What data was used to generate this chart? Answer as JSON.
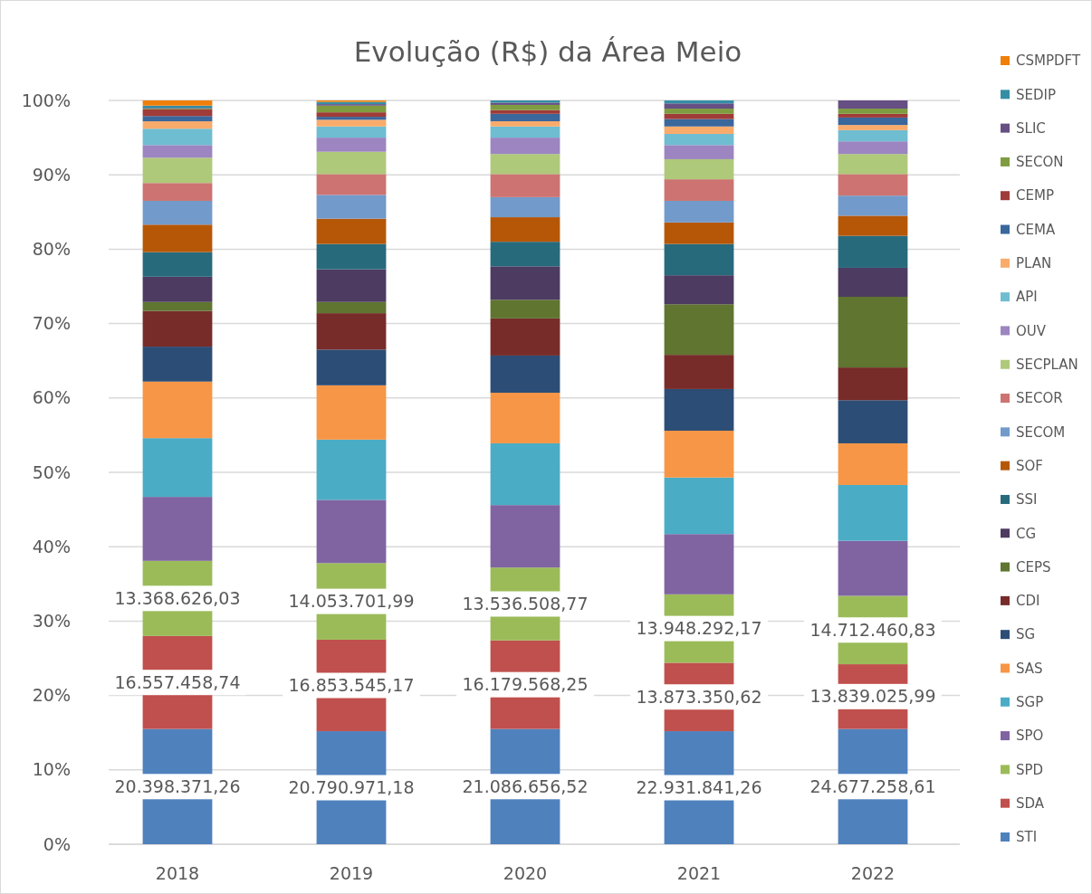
{
  "chart_data": {
    "type": "bar",
    "stacked": true,
    "title": "Evolução (R$) da Área Meio",
    "categories": [
      "2018",
      "2019",
      "2020",
      "2021",
      "2022"
    ],
    "ylim": [
      0,
      100
    ],
    "yticks": [
      {
        "value": 0,
        "label": "0%"
      },
      {
        "value": 10,
        "label": "10%"
      },
      {
        "value": 20,
        "label": "20%"
      },
      {
        "value": 30,
        "label": "30%"
      },
      {
        "value": 40,
        "label": "40%"
      },
      {
        "value": 50,
        "label": "50%"
      },
      {
        "value": 60,
        "label": "60%"
      },
      {
        "value": 70,
        "label": "70%"
      },
      {
        "value": 80,
        "label": "80%"
      },
      {
        "value": 90,
        "label": "90%"
      },
      {
        "value": 100,
        "label": "100%"
      }
    ],
    "grid": "y",
    "legend": "right",
    "annotations": [
      "20.398.371,26",
      "20.790.971,18",
      "21.086.656,52",
      "22.931.841,26",
      "24.677.258,61",
      "16.557.458,74",
      "16.853.545,17",
      "16.179.568,25",
      "13.873.350,62",
      "13.839.025,99",
      "13.368.626,03",
      "14.053.701,99",
      "13.536.508,77",
      "13.948.292,17",
      "14.712.460,83"
    ],
    "series": [
      {
        "name": "STI",
        "color": "#4f81bd",
        "values": [
          15.5,
          15.2,
          15.5,
          15.2,
          15.5
        ]
      },
      {
        "name": "SDA",
        "color": "#c0504d",
        "values": [
          12.5,
          12.3,
          11.9,
          9.2,
          8.7
        ]
      },
      {
        "name": "SPD",
        "color": "#9bbb59",
        "values": [
          10.1,
          10.3,
          9.8,
          9.2,
          9.2
        ]
      },
      {
        "name": "SPO",
        "color": "#8064a2",
        "values": [
          8.6,
          8.5,
          8.4,
          8.1,
          7.4
        ]
      },
      {
        "name": "SGP",
        "color": "#4bacc6",
        "values": [
          7.9,
          8.1,
          8.3,
          7.6,
          7.5
        ]
      },
      {
        "name": "SAS",
        "color": "#f79646",
        "values": [
          7.6,
          7.3,
          6.8,
          6.3,
          5.6
        ]
      },
      {
        "name": "SG",
        "color": "#2c4d75",
        "values": [
          4.7,
          4.8,
          5.0,
          5.6,
          5.8
        ]
      },
      {
        "name": "CDI",
        "color": "#772c2a",
        "values": [
          4.8,
          4.9,
          5.0,
          4.6,
          4.4
        ]
      },
      {
        "name": "CEPS",
        "color": "#5f7530",
        "values": [
          1.2,
          1.5,
          2.5,
          6.8,
          9.5
        ]
      },
      {
        "name": "CG",
        "color": "#4d3b62",
        "values": [
          3.4,
          4.4,
          4.5,
          3.9,
          3.9
        ]
      },
      {
        "name": "SSI",
        "color": "#276a7c",
        "values": [
          3.3,
          3.4,
          3.3,
          4.2,
          4.3
        ]
      },
      {
        "name": "SOF",
        "color": "#b65708",
        "values": [
          3.7,
          3.4,
          3.3,
          2.9,
          2.7
        ]
      },
      {
        "name": "SECOM",
        "color": "#729aca",
        "values": [
          3.2,
          3.2,
          2.7,
          2.9,
          2.7
        ]
      },
      {
        "name": "SECOR",
        "color": "#cd7371",
        "values": [
          2.4,
          2.8,
          3.1,
          2.9,
          2.9
        ]
      },
      {
        "name": "SECPLAN",
        "color": "#afc97a",
        "values": [
          3.4,
          3.0,
          2.7,
          2.7,
          2.7
        ]
      },
      {
        "name": "OUV",
        "color": "#9c85c0",
        "values": [
          1.7,
          1.9,
          2.2,
          1.9,
          1.7
        ]
      },
      {
        "name": "API",
        "color": "#6fbdd1",
        "values": [
          2.2,
          1.5,
          1.5,
          1.5,
          1.5
        ]
      },
      {
        "name": "PLAN",
        "color": "#f9ab6b",
        "values": [
          1.0,
          0.9,
          0.7,
          1.0,
          0.7
        ]
      },
      {
        "name": "CEMA",
        "color": "#3a679c",
        "values": [
          0.7,
          0.4,
          1.0,
          1.0,
          1.0
        ]
      },
      {
        "name": "CEMP",
        "color": "#9f3b38",
        "values": [
          0.9,
          0.6,
          0.5,
          0.7,
          0.5
        ]
      },
      {
        "name": "SECON",
        "color": "#7f9c40",
        "values": [
          0.1,
          0.9,
          0.7,
          0.7,
          0.7
        ]
      },
      {
        "name": "SLIC",
        "color": "#664f83",
        "values": [
          0.1,
          0.2,
          0.3,
          0.7,
          1.1
        ]
      },
      {
        "name": "SEDIP",
        "color": "#358ea6",
        "values": [
          0.3,
          0.3,
          0.3,
          0.4,
          0
        ]
      },
      {
        "name": "CSMPDFT",
        "color": "#f07f09",
        "values": [
          0.7,
          0.2,
          0,
          0,
          0
        ]
      }
    ]
  }
}
